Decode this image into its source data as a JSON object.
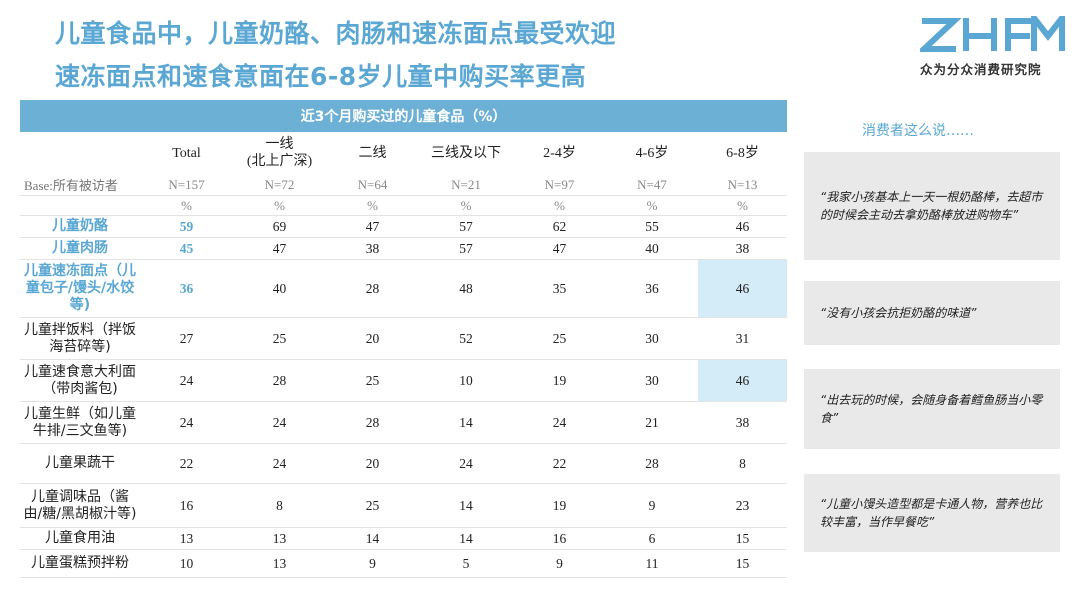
{
  "title": {
    "line1": "儿童食品中，儿童奶酪、肉肠和速冻面点最受欢迎",
    "line2": "速冻面点和速食意面在6-8岁儿童中购买率更高"
  },
  "logo": {
    "text": "ZHFM",
    "subtitle": "众为分众消费研究院",
    "color": "#5aa7d3"
  },
  "table": {
    "header": "近3个月购买过的儿童食品（%）",
    "columns": [
      {
        "label": "Total",
        "base": "N=157"
      },
      {
        "label": "一线\n(北上广深)",
        "base": "N=72"
      },
      {
        "label": "二线",
        "base": "N=64"
      },
      {
        "label": "三线及以下",
        "base": "N=21"
      },
      {
        "label": "2-4岁",
        "base": "N=97"
      },
      {
        "label": "4-6岁",
        "base": "N=47"
      },
      {
        "label": "6-8岁",
        "base": "N=13"
      }
    ],
    "base_label": "Base:所有被访者",
    "percent_symbol": "%",
    "rows": [
      {
        "label": "儿童奶酪",
        "values": [
          "59",
          "69",
          "47",
          "57",
          "62",
          "55",
          "46"
        ],
        "highlight_label": true
      },
      {
        "label": "儿童肉肠",
        "values": [
          "45",
          "47",
          "38",
          "57",
          "47",
          "40",
          "38"
        ],
        "highlight_label": true
      },
      {
        "label": "儿童速冻面点（儿童包子/馒头/水饺等)",
        "values": [
          "36",
          "40",
          "28",
          "48",
          "35",
          "36",
          "46"
        ],
        "highlight_label": true,
        "highlight_last": true
      },
      {
        "label": "儿童拌饭料（拌饭海苔碎等)",
        "values": [
          "27",
          "25",
          "20",
          "52",
          "25",
          "30",
          "31"
        ]
      },
      {
        "label": "儿童速食意大利面（带肉酱包)",
        "values": [
          "24",
          "28",
          "25",
          "10",
          "19",
          "30",
          "46"
        ],
        "highlight_last": true
      },
      {
        "label": "儿童生鲜（如儿童牛排/三文鱼等)",
        "values": [
          "24",
          "24",
          "28",
          "14",
          "24",
          "21",
          "38"
        ]
      },
      {
        "label": "儿童果蔬干",
        "values": [
          "22",
          "24",
          "20",
          "24",
          "22",
          "28",
          "8"
        ]
      },
      {
        "label": "儿童调味品（酱由/糖/黑胡椒汁等)",
        "values": [
          "16",
          "8",
          "25",
          "14",
          "19",
          "9",
          "23"
        ]
      },
      {
        "label": "儿童食用油",
        "values": [
          "13",
          "13",
          "14",
          "14",
          "16",
          "6",
          "15"
        ]
      },
      {
        "label": "儿童蛋糕预拌粉",
        "values": [
          "10",
          "13",
          "9",
          "5",
          "9",
          "11",
          "15"
        ]
      }
    ]
  },
  "quotes": {
    "title": "消费者这么说……",
    "items": [
      "“我家小孩基本上一天一根奶酪棒，去超市的时候会主动去拿奶酪棒放进购物车”",
      "“没有小孩会抗拒奶酪的味道”",
      "“出去玩的时候，会随身备着鳕鱼肠当小零食”",
      "“儿童小馒头造型都是卡通人物，营养也比较丰富，当作早餐吃”"
    ]
  },
  "colors": {
    "accent": "#5aa7d3",
    "header_bg": "#6db0d6",
    "highlight_bg": "#d3ecf7",
    "quote_bg": "#e9e9e9"
  }
}
